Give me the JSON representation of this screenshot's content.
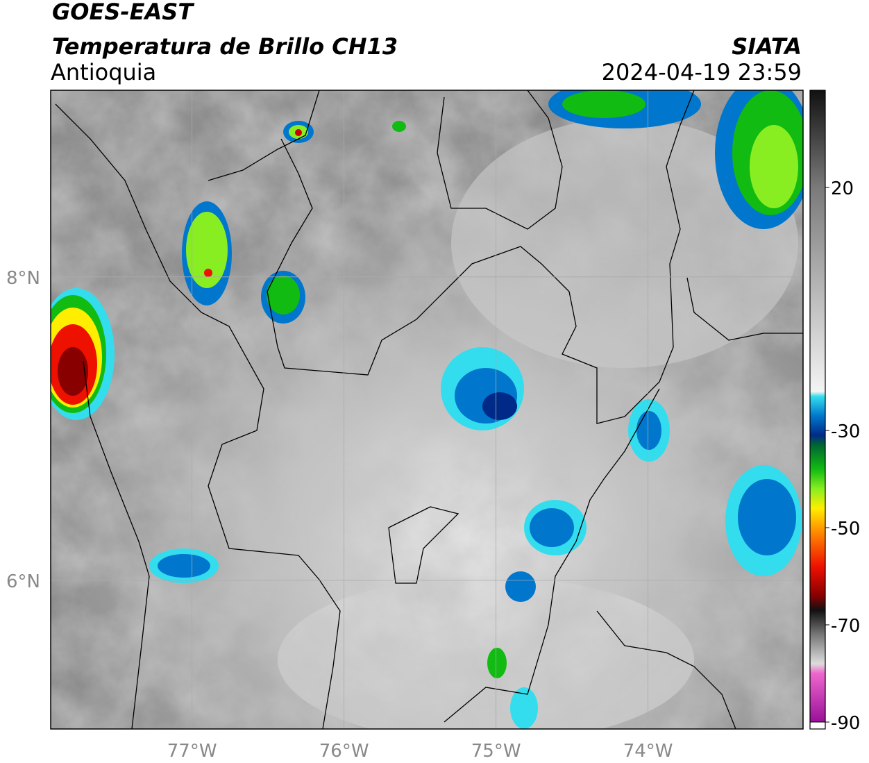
{
  "map": {
    "title": "GOES-EAST",
    "subtitle": "Temperatura de Brillo CH13",
    "region": "Antioquia",
    "source": "SIATA",
    "datetime": "2024-04-19 23:59",
    "lonlim": [
      -77.93,
      -72.98
    ],
    "latlim": [
      5.02,
      9.23
    ],
    "lonticks": [
      {
        "value": -77,
        "label": "77°W"
      },
      {
        "value": -76,
        "label": "76°W"
      },
      {
        "value": -75,
        "label": "75°W"
      },
      {
        "value": -74,
        "label": "74°W"
      }
    ],
    "latticks": [
      {
        "value": 8,
        "label": "8°N"
      },
      {
        "value": 6,
        "label": "6°N"
      }
    ],
    "grid": true,
    "colorbar": {
      "clim": [
        -90,
        40
      ],
      "ticks": [
        20,
        -30,
        -50,
        -70,
        -90
      ],
      "colormap": [
        [
          40,
          "#111111"
        ],
        [
          20,
          "#7a7a7a"
        ],
        [
          -22,
          "#f4f4f4"
        ],
        [
          -23,
          "#33ddee"
        ],
        [
          -27,
          "#0077cc"
        ],
        [
          -31,
          "#002a88"
        ],
        [
          -33,
          "#006633"
        ],
        [
          -38,
          "#11bb11"
        ],
        [
          -42,
          "#88ee22"
        ],
        [
          -46,
          "#ffee00"
        ],
        [
          -51,
          "#ff8800"
        ],
        [
          -58,
          "#ee1100"
        ],
        [
          -64,
          "#880000"
        ],
        [
          -67,
          "#111111"
        ],
        [
          -72,
          "#777777"
        ],
        [
          -78,
          "#dddddd"
        ],
        [
          -80,
          "#ee66cc"
        ],
        [
          -90,
          "#991199"
        ]
      ]
    }
  }
}
